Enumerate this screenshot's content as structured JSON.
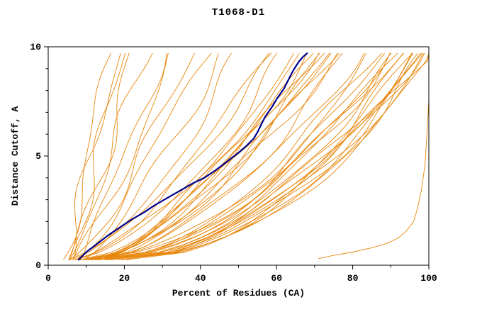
{
  "chart_data": {
    "type": "line",
    "title": "T1068-D1",
    "xlabel": "Percent of Residues (CA)",
    "ylabel": "Distance Cutoff, A",
    "xlim": [
      0,
      100
    ],
    "ylim": [
      0,
      10
    ],
    "x_major_ticks": [
      0,
      20,
      40,
      60,
      80,
      100
    ],
    "x_minor_ticks": [
      10,
      30,
      50,
      70,
      90
    ],
    "y_major_ticks": [
      0,
      5,
      10
    ],
    "y_minor_ticks": [
      1,
      2,
      3,
      4,
      6,
      7,
      8,
      9
    ],
    "grid": false,
    "legend": "none",
    "colors": {
      "model_lines": "#E8860C",
      "highlight_line": "#00008B",
      "axis": "#000000",
      "background": "#FFFFFF"
    },
    "highlight_series": {
      "name": "highlighted-model",
      "points": [
        [
          8,
          0.25
        ],
        [
          10,
          0.6
        ],
        [
          13,
          1.0
        ],
        [
          16,
          1.4
        ],
        [
          19,
          1.75
        ],
        [
          22,
          2.1
        ],
        [
          25,
          2.4
        ],
        [
          28,
          2.75
        ],
        [
          31,
          3.05
        ],
        [
          34,
          3.35
        ],
        [
          38,
          3.75
        ],
        [
          41,
          4.0
        ],
        [
          44,
          4.35
        ],
        [
          47,
          4.75
        ],
        [
          50,
          5.15
        ],
        [
          52,
          5.45
        ],
        [
          54,
          5.8
        ],
        [
          55,
          6.1
        ],
        [
          56,
          6.45
        ],
        [
          57,
          6.8
        ],
        [
          59,
          7.3
        ],
        [
          60,
          7.6
        ],
        [
          62,
          8.1
        ],
        [
          63,
          8.45
        ],
        [
          64,
          8.8
        ],
        [
          65,
          9.1
        ],
        [
          66,
          9.35
        ],
        [
          67,
          9.55
        ],
        [
          68,
          9.7
        ]
      ]
    },
    "outlier_series": {
      "name": "right-outlier-model",
      "points": [
        [
          71,
          0.3
        ],
        [
          75,
          0.45
        ],
        [
          80,
          0.6
        ],
        [
          85,
          0.8
        ],
        [
          89,
          1.0
        ],
        [
          92,
          1.25
        ],
        [
          94,
          1.55
        ],
        [
          96,
          2.0
        ],
        [
          97,
          2.6
        ],
        [
          98,
          3.4
        ],
        [
          99,
          4.6
        ],
        [
          99.5,
          6.0
        ],
        [
          100,
          7.6
        ],
        [
          100,
          9.7
        ]
      ]
    },
    "model_curves": {
      "encoding": "each curve approximated as [x_at_bottom, x_at_top, bend_exponent] over y_range",
      "y_range": [
        0.25,
        9.7
      ],
      "params": [
        [
          4,
          16,
          0.9
        ],
        [
          5,
          18,
          1.0
        ],
        [
          6,
          22,
          0.85
        ],
        [
          5,
          26,
          0.9
        ],
        [
          7,
          30,
          0.8
        ],
        [
          8,
          33,
          0.9
        ],
        [
          6,
          20,
          1.05
        ],
        [
          8,
          68,
          0.6
        ],
        [
          9,
          62,
          0.65
        ],
        [
          7,
          58,
          0.7
        ],
        [
          10,
          65,
          0.6
        ],
        [
          11,
          72,
          0.62
        ],
        [
          8,
          75,
          0.58
        ],
        [
          12,
          70,
          0.68
        ],
        [
          9,
          66,
          0.72
        ],
        [
          10,
          74,
          0.6
        ],
        [
          13,
          76,
          0.65
        ],
        [
          7,
          60,
          0.75
        ],
        [
          11,
          69,
          0.63
        ],
        [
          12,
          73,
          0.7
        ],
        [
          14,
          78,
          0.6
        ],
        [
          10,
          71,
          0.66
        ],
        [
          9,
          82,
          0.55
        ],
        [
          10,
          85,
          0.5
        ],
        [
          12,
          88,
          0.52
        ],
        [
          11,
          90,
          0.48
        ],
        [
          13,
          92,
          0.5
        ],
        [
          15,
          95,
          0.45
        ],
        [
          14,
          97,
          0.5
        ],
        [
          16,
          99,
          0.48
        ],
        [
          12,
          100,
          0.5
        ],
        [
          18,
          98,
          0.52
        ],
        [
          20,
          100,
          0.47
        ],
        [
          10,
          93,
          0.55
        ],
        [
          13,
          96,
          0.5
        ],
        [
          17,
          99,
          0.45
        ],
        [
          15,
          91,
          0.53
        ],
        [
          19,
          100,
          0.5
        ],
        [
          16,
          94,
          0.48
        ],
        [
          14,
          86,
          0.57
        ],
        [
          11,
          89,
          0.5
        ],
        [
          18,
          97,
          0.46
        ],
        [
          6,
          38,
          0.8
        ],
        [
          9,
          45,
          0.75
        ],
        [
          8,
          50,
          0.7
        ],
        [
          7,
          42,
          0.85
        ]
      ]
    }
  }
}
